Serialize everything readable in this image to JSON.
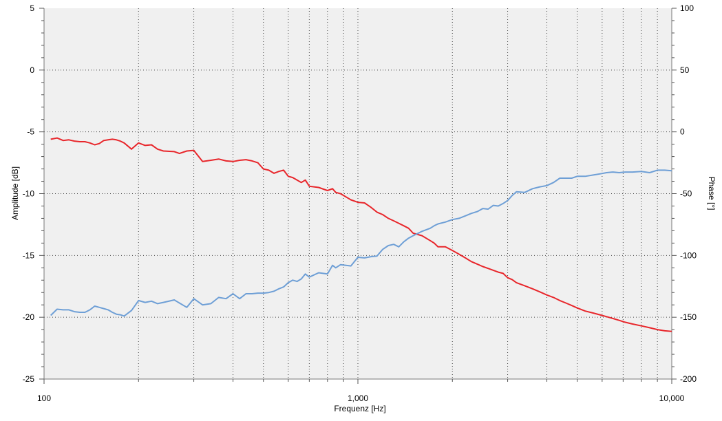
{
  "chart_data": {
    "type": "line",
    "xlabel": "Frequenz [Hz]",
    "ylabel": "Amplitude [dB]",
    "y2label": "Phase [°]",
    "x_scale": "log",
    "xlim": [
      100,
      10000
    ],
    "ylim": [
      -25,
      5
    ],
    "y2lim": [
      -200,
      100
    ],
    "x_ticks": [
      100,
      1000,
      10000
    ],
    "x_tick_labels": [
      "100",
      "1,000",
      "10,000"
    ],
    "y_ticks": [
      5,
      0,
      -5,
      -10,
      -15,
      -20,
      -25
    ],
    "y2_ticks": [
      100,
      50,
      0,
      -50,
      -100,
      -150,
      -200
    ],
    "grid": true,
    "legend": "none",
    "series": [
      {
        "axis": "left",
        "color": "#e8262b",
        "x": [
          105,
          110,
          115,
          120,
          125,
          130,
          135,
          140,
          145,
          150,
          155,
          160,
          165,
          170,
          175,
          180,
          190,
          200,
          210,
          220,
          230,
          240,
          260,
          270,
          285,
          300,
          320,
          340,
          360,
          380,
          400,
          420,
          440,
          460,
          480,
          500,
          520,
          540,
          560,
          580,
          600,
          620,
          640,
          660,
          680,
          700,
          750,
          800,
          830,
          850,
          880,
          950,
          1000,
          1050,
          1100,
          1150,
          1200,
          1250,
          1300,
          1350,
          1400,
          1450,
          1500,
          1600,
          1700,
          1750,
          1800,
          1900,
          2000,
          2100,
          2200,
          2300,
          2400,
          2500,
          2600,
          2700,
          2800,
          2900,
          3000,
          3100,
          3200,
          3400,
          3600,
          3800,
          4000,
          4200,
          4400,
          4600,
          4800,
          5000,
          5300,
          5600,
          5900,
          6200,
          6500,
          6800,
          7100,
          7500,
          8000,
          8500,
          9000,
          9500,
          10000
        ],
        "y": [
          -5.6,
          -5.5,
          -5.7,
          -5.65,
          -5.75,
          -5.8,
          -5.8,
          -5.9,
          -6.05,
          -5.95,
          -5.7,
          -5.65,
          -5.6,
          -5.65,
          -5.75,
          -5.9,
          -6.4,
          -5.9,
          -6.1,
          -6.05,
          -6.4,
          -6.55,
          -6.6,
          -6.75,
          -6.55,
          -6.5,
          -7.4,
          -7.3,
          -7.2,
          -7.35,
          -7.4,
          -7.3,
          -7.25,
          -7.35,
          -7.5,
          -8.0,
          -8.1,
          -8.35,
          -8.2,
          -8.1,
          -8.6,
          -8.7,
          -8.9,
          -9.1,
          -8.9,
          -9.4,
          -9.5,
          -9.75,
          -9.6,
          -9.9,
          -10.0,
          -10.5,
          -10.7,
          -10.75,
          -11.1,
          -11.5,
          -11.7,
          -12.0,
          -12.2,
          -12.4,
          -12.6,
          -12.8,
          -13.2,
          -13.4,
          -13.8,
          -14.0,
          -14.3,
          -14.3,
          -14.6,
          -14.9,
          -15.2,
          -15.5,
          -15.7,
          -15.9,
          -16.05,
          -16.2,
          -16.35,
          -16.45,
          -16.8,
          -16.95,
          -17.2,
          -17.45,
          -17.7,
          -17.95,
          -18.2,
          -18.4,
          -18.65,
          -18.85,
          -19.05,
          -19.25,
          -19.5,
          -19.65,
          -19.8,
          -19.95,
          -20.1,
          -20.25,
          -20.4,
          -20.55,
          -20.7,
          -20.85,
          -21.0,
          -21.1,
          -21.15
        ]
      },
      {
        "axis": "right",
        "color": "#6e9fd6",
        "x": [
          105,
          110,
          115,
          120,
          125,
          130,
          135,
          140,
          145,
          150,
          155,
          160,
          165,
          170,
          175,
          180,
          190,
          200,
          210,
          220,
          230,
          240,
          260,
          270,
          285,
          300,
          320,
          340,
          360,
          380,
          400,
          420,
          440,
          460,
          480,
          500,
          520,
          540,
          560,
          580,
          600,
          620,
          640,
          660,
          680,
          700,
          750,
          800,
          830,
          850,
          880,
          950,
          1000,
          1050,
          1100,
          1150,
          1200,
          1250,
          1300,
          1350,
          1400,
          1450,
          1500,
          1600,
          1700,
          1750,
          1800,
          1900,
          2000,
          2100,
          2200,
          2300,
          2400,
          2500,
          2600,
          2700,
          2800,
          2900,
          3000,
          3100,
          3200,
          3400,
          3600,
          3800,
          4000,
          4200,
          4400,
          4600,
          4800,
          5000,
          5300,
          5600,
          5900,
          6200,
          6500,
          6800,
          7100,
          7500,
          8000,
          8500,
          9000,
          9500,
          10000
        ],
        "y": [
          -148.5,
          -143.5,
          -144,
          -144,
          -145.5,
          -146,
          -146,
          -144,
          -141,
          -142,
          -143,
          -144,
          -146,
          -147.5,
          -148,
          -149,
          -144.5,
          -136.5,
          -138,
          -137,
          -139,
          -138,
          -136,
          -138.5,
          -142,
          -135,
          -140,
          -139,
          -134,
          -135,
          -131,
          -135,
          -131,
          -131,
          -130.5,
          -130.5,
          -130,
          -129,
          -127,
          -125.5,
          -122,
          -120,
          -121,
          -119,
          -115,
          -117.5,
          -114,
          -115,
          -108,
          -110,
          -107.5,
          -108.5,
          -101.5,
          -102,
          -101,
          -100.5,
          -95,
          -92,
          -91,
          -93,
          -89,
          -86,
          -84,
          -80.5,
          -78,
          -76,
          -74.5,
          -73,
          -71,
          -70,
          -68,
          -66,
          -64.5,
          -62,
          -62.5,
          -59.5,
          -60,
          -58,
          -55.5,
          -51.5,
          -48.5,
          -49,
          -46,
          -44.5,
          -43.5,
          -41,
          -37.5,
          -37.5,
          -37.5,
          -36,
          -36,
          -35,
          -34,
          -33,
          -32.5,
          -33,
          -32.5,
          -32.5,
          -32,
          -33,
          -31,
          -31,
          -31.5
        ]
      }
    ]
  }
}
